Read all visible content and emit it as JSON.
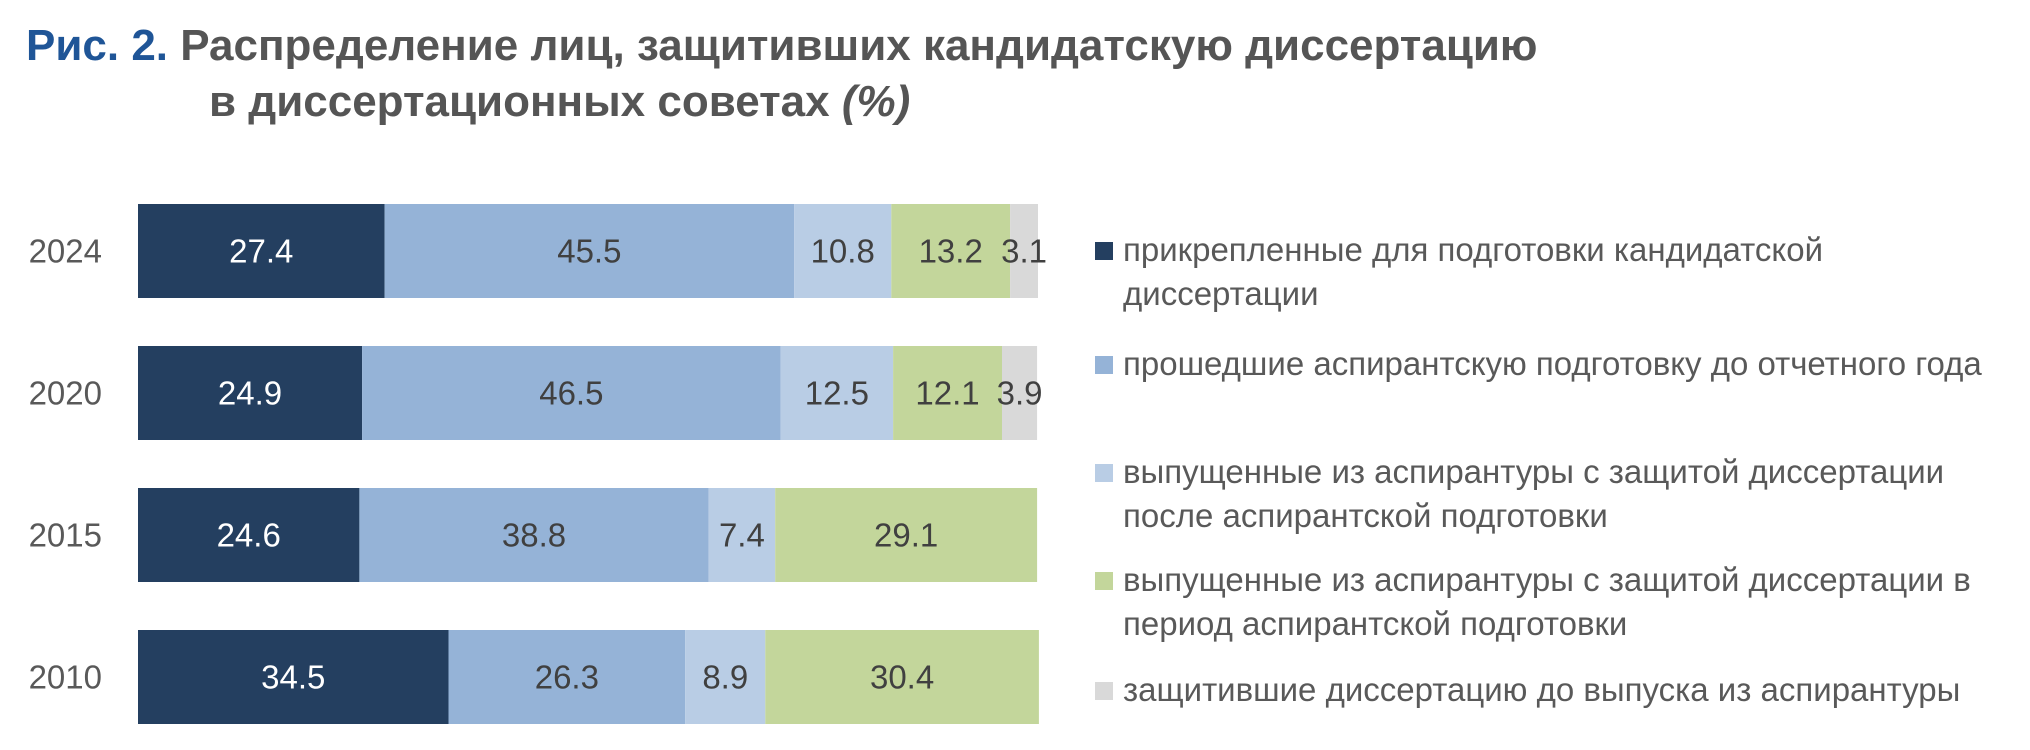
{
  "title": {
    "fig_num": "Рис. 2.",
    "line1": "Распределение лиц, защитивших кандидатскую диссертацию",
    "line2": "в диссертационных советах",
    "unit": "(%)"
  },
  "legend": [
    {
      "label": "прикрепленные для подготовки кандидатской диссертации",
      "color": "#243f60"
    },
    {
      "label": "прошедшие аспирантскую подготовку до отчетного года",
      "color": "#95b3d7"
    },
    {
      "label": "выпущенные из аспирантуры с защитой диссертации после аспирантской подготовки",
      "color": "#b9cde5"
    },
    {
      "label": "выпущенные из аспирантуры с защитой диссертации в период аспирантской подготовки",
      "color": "#c3d69b"
    },
    {
      "label": "защитившие диссертацию до выпуска из аспирантуры",
      "color": "#d9d9d9"
    }
  ],
  "chart_data": {
    "type": "bar",
    "orientation": "horizontal",
    "stacked": true,
    "categories": [
      "2024",
      "2020",
      "2015",
      "2010"
    ],
    "series": [
      {
        "name": "прикрепленные для подготовки кандидатской диссертации",
        "color": "#243f60",
        "label_color": "#ffffff",
        "values": [
          27.4,
          24.9,
          24.6,
          34.5
        ]
      },
      {
        "name": "прошедшие аспирантскую подготовку до отчетного года",
        "color": "#95b3d7",
        "label_color": "#404040",
        "values": [
          45.5,
          46.5,
          38.8,
          26.3
        ]
      },
      {
        "name": "выпущенные из аспирантуры с защитой диссертации после аспирантской подготовки",
        "color": "#b9cde5",
        "label_color": "#404040",
        "values": [
          10.8,
          12.5,
          7.4,
          8.9
        ]
      },
      {
        "name": "выпущенные из аспирантуры с защитой диссертации в период аспирантской подготовки",
        "color": "#c3d69b",
        "label_color": "#404040",
        "values": [
          13.2,
          12.1,
          29.1,
          30.4
        ]
      },
      {
        "name": "защитившие диссертацию до выпуска из аспирантуры",
        "color": "#d9d9d9",
        "label_color": "#404040",
        "values": [
          3.1,
          3.9,
          null,
          null
        ]
      }
    ],
    "xlim": [
      0,
      100
    ],
    "grid": false,
    "legend_position": "right"
  }
}
